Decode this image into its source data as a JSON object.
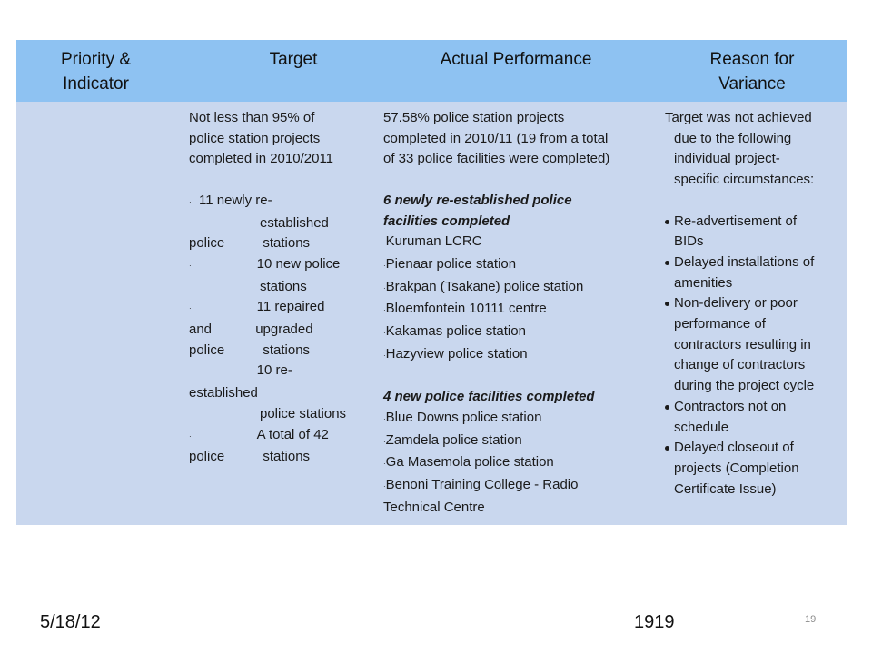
{
  "headers": {
    "col1": [
      "Priority &",
      "Indicator"
    ],
    "col2": "Target",
    "col3": "Actual Performance",
    "col4": [
      "Reason for",
      "Variance"
    ]
  },
  "target": {
    "intro": [
      "Not less than 95% of",
      "police station projects",
      "completed in 2010/2011"
    ],
    "items": [
      {
        "bullet": "·",
        "lines": [
          "11 newly re-",
          "established",
          "police stations"
        ]
      },
      {
        "bullet": "·",
        "lines": [
          "10 new police",
          "stations"
        ]
      },
      {
        "bullet": "·",
        "lines": [
          "11 repaired",
          "and upgraded",
          "police stations"
        ]
      },
      {
        "bullet": "·",
        "lines": [
          "10 re-",
          "established",
          "police stations"
        ]
      },
      {
        "bullet": "·",
        "lines": [
          "A total of 42",
          "police stations"
        ]
      }
    ]
  },
  "actual": {
    "intro": [
      "57.58% police station projects",
      "completed in 2010/11 (19 from a total",
      "of 33 police facilities were completed)"
    ],
    "group1_heading": [
      "6 newly re-established police",
      "facilities completed"
    ],
    "group1_items": [
      "Kuruman LCRC",
      "Pienaar police station",
      "Brakpan (Tsakane) police station",
      "Bloemfontein 10111 centre",
      "Kakamas police station",
      "Hazyview police station"
    ],
    "group2_heading": "4 new police facilities completed",
    "group2_items": [
      "Blue Downs police station",
      "Zamdela police station",
      "Ga Masemola police station",
      "Benoni Training College - Radio"
    ],
    "group2_last_line": "Technical Centre"
  },
  "reason": {
    "intro": [
      "Target was not achieved",
      "due to the following",
      "individual project-",
      "specific circumstances:"
    ],
    "bullets": [
      [
        "Re-advertisement of",
        "BIDs"
      ],
      [
        "Delayed installations of",
        "amenities"
      ],
      [
        "Non-delivery or poor",
        "performance of",
        "contractors resulting in",
        "change of contractors",
        "during the project cycle"
      ],
      [
        "Contractors not on",
        "schedule"
      ],
      [
        "Delayed closeout of",
        "projects (Completion",
        "Certificate Issue)"
      ]
    ]
  },
  "footer": {
    "date": "5/18/12",
    "number": "1919",
    "page": "19"
  }
}
